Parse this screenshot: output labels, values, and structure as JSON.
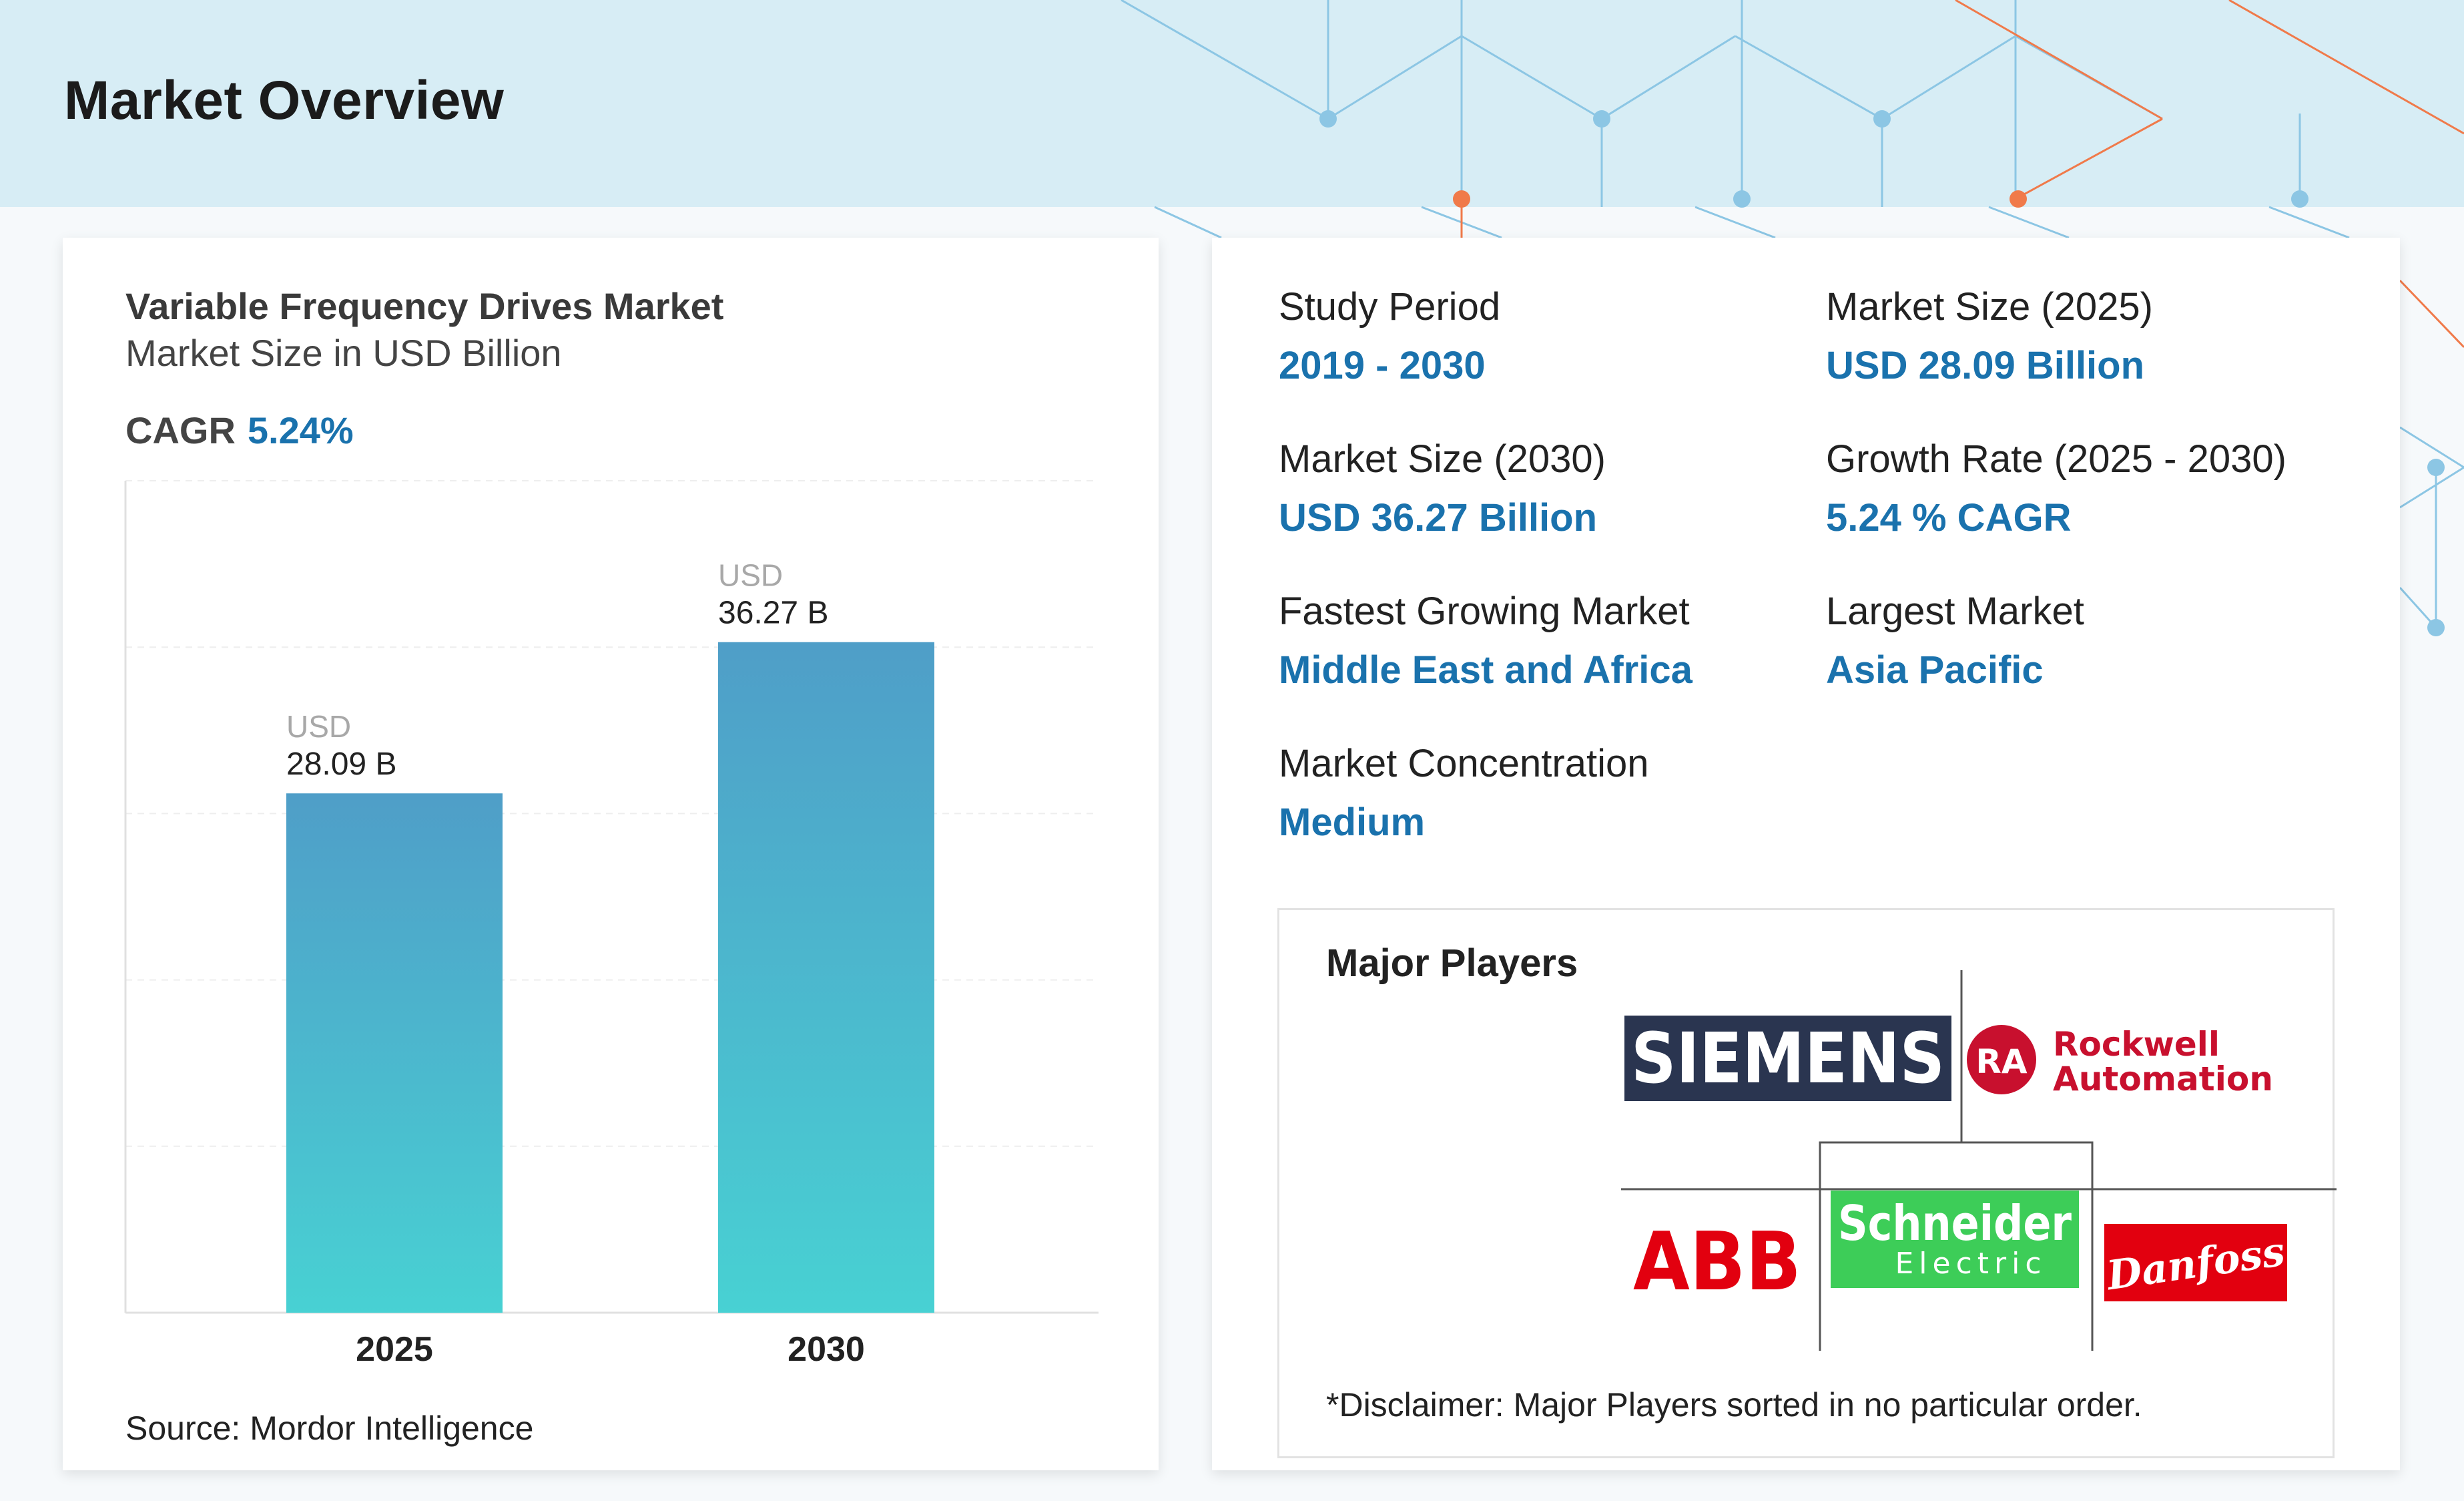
{
  "page": {
    "title": "Market Overview"
  },
  "chart_data": {
    "type": "bar",
    "title": "Variable Frequency Drives Market",
    "subtitle": "Market Size in USD Billion",
    "cagr_label": "CAGR",
    "cagr_value": "5.24%",
    "categories": [
      "2025",
      "2030"
    ],
    "values": [
      28.09,
      36.27
    ],
    "value_labels": [
      {
        "unit": "USD",
        "amount": "28.09 B"
      },
      {
        "unit": "USD",
        "amount": "36.27 B"
      }
    ],
    "ylim": [
      0,
      45
    ],
    "grid": true,
    "bar_gradient": [
      "#4f9ec8",
      "#48d1d3"
    ],
    "source": "Source: Mordor Intelligence"
  },
  "stats": {
    "study_period": {
      "label": "Study Period",
      "value": "2019 - 2030"
    },
    "market_size_2025": {
      "label": "Market Size (2025)",
      "value": "USD 28.09 Billion"
    },
    "market_size_2030": {
      "label": "Market Size (2030)",
      "value": "USD 36.27 Billion"
    },
    "growth_rate": {
      "label": "Growth Rate (2025 - 2030)",
      "value": "5.24 % CAGR"
    },
    "fastest_growing": {
      "label": "Fastest Growing Market",
      "value": "Middle East and Africa"
    },
    "largest_market": {
      "label": "Largest Market",
      "value": "Asia Pacific"
    },
    "concentration": {
      "label": "Market Concentration",
      "value": "Medium"
    }
  },
  "players": {
    "title": "Major Players",
    "disclaimer": "*Disclaimer: Major Players sorted in no particular order.",
    "logos": [
      {
        "name": "SIEMENS"
      },
      {
        "name": "Rockwell Automation",
        "mark": "RA",
        "line1": "Rockwell",
        "line2": "Automation"
      },
      {
        "name": "ABB"
      },
      {
        "name": "Schneider Electric",
        "line1": "Schneider",
        "line2": "Electric"
      },
      {
        "name": "Danfoss"
      }
    ]
  },
  "colors": {
    "accent": "#1a72ad",
    "header_bg": "#d7edf5",
    "network_blue": "#8cc6e4",
    "network_orange": "#f07a4a"
  }
}
